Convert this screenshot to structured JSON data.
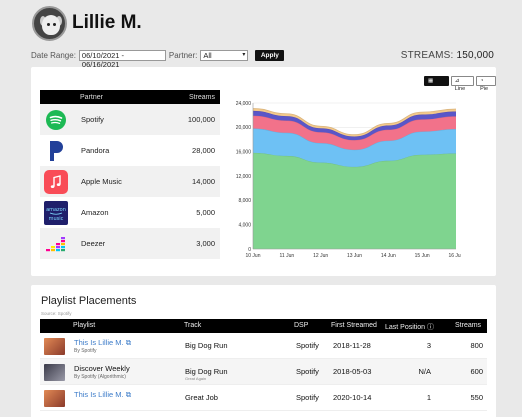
{
  "profile": {
    "name": "Lillie M."
  },
  "filters": {
    "date_range_label": "Date Range:",
    "date_range_value": "06/10/2021 - 06/16/2021",
    "partner_label": "Partner:",
    "partner_value": "All",
    "apply_label": "Apply"
  },
  "streams_total": {
    "label": "STREAMS:",
    "value": "150,000"
  },
  "partners_table": {
    "headers": [
      "Partner",
      "Streams"
    ],
    "rows": [
      {
        "name": "Spotify",
        "streams": "100,000",
        "icon": "spotify-icon",
        "color": "#1db954"
      },
      {
        "name": "Pandora",
        "streams": "28,000",
        "icon": "pandora-icon",
        "color": "#224099"
      },
      {
        "name": "Apple Music",
        "streams": "14,000",
        "icon": "apple-music-icon",
        "color": "#f94c57"
      },
      {
        "name": "Amazon",
        "streams": "5,000",
        "icon": "amazon-music-icon",
        "color": "#1f1f6b"
      },
      {
        "name": "Deezer",
        "streams": "3,000",
        "icon": "deezer-icon",
        "color": "#ffffff"
      }
    ]
  },
  "chart_buttons": [
    {
      "label": "Area",
      "active": true
    },
    {
      "label": "Line",
      "active": false
    },
    {
      "label": "Pie",
      "active": false
    }
  ],
  "chart_data": {
    "type": "area",
    "stacked": true,
    "x": [
      "10 Jun",
      "11 Jun",
      "12 Jun",
      "13 Jun",
      "14 Jun",
      "15 Jun",
      "16 Jun"
    ],
    "ylim": [
      0,
      24000
    ],
    "yticks": [
      "0",
      "4,000",
      "8,000",
      "12,000",
      "16,000",
      "20,000",
      "24,000"
    ],
    "grid": true,
    "series": [
      {
        "color": "#7fd48f",
        "values": [
          15800,
          15300,
          14200,
          13500,
          14500,
          15500,
          15700
        ]
      },
      {
        "color": "#6ec1f4",
        "values": [
          4000,
          3800,
          3200,
          2800,
          3300,
          3800,
          4000
        ]
      },
      {
        "color": "#f2728a",
        "values": [
          2100,
          2000,
          1800,
          1600,
          1800,
          2000,
          2100
        ]
      },
      {
        "color": "#5a56c8",
        "values": [
          800,
          750,
          650,
          600,
          700,
          800,
          800
        ]
      },
      {
        "color": "#f3c98b",
        "values": [
          400,
          380,
          330,
          300,
          350,
          400,
          400
        ]
      }
    ]
  },
  "playlists": {
    "title": "Playlist Placements",
    "source": "Source: Spotify",
    "headers": [
      "Playlist",
      "Track",
      "DSP",
      "First Streamed",
      "Last Position",
      "Streams"
    ],
    "rows": [
      {
        "playlist": "This Is Lillie M.",
        "by": "By Spotify",
        "link": true,
        "track": "Big Dog Run",
        "track_sub": "",
        "dsp": "Spotify",
        "first": "2018-11-28",
        "last": "3",
        "streams": "800",
        "thumb": "#c45a3a"
      },
      {
        "playlist": "Discover Weekly",
        "by": "By Spotify (Algorithmic)",
        "link": false,
        "track": "Big Dog Run",
        "track_sub": "Great Again",
        "dsp": "Spotify",
        "first": "2018-05-03",
        "last": "N/A",
        "streams": "600",
        "thumb": "#555566"
      },
      {
        "playlist": "This Is Lillie M.",
        "by": "",
        "link": true,
        "track": "Great Job",
        "track_sub": "",
        "dsp": "Spotify",
        "first": "2020-10-14",
        "last": "1",
        "streams": "550",
        "thumb": "#c45a3a"
      }
    ]
  }
}
